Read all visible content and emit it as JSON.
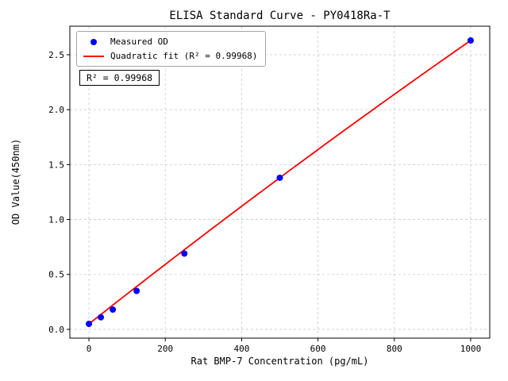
{
  "chart_data": {
    "type": "scatter",
    "title": "ELISA Standard Curve - PY0418Ra-T",
    "xlabel": "Rat BMP-7 Concentration (pg/mL)",
    "ylabel": "OD Value(450nm)",
    "xlim": [
      -50,
      1050
    ],
    "ylim": [
      -0.08,
      2.76
    ],
    "x_ticks": [
      0,
      200,
      400,
      600,
      800,
      1000
    ],
    "x_tick_labels": [
      "0",
      "200",
      "400",
      "600",
      "800",
      "1000"
    ],
    "y_ticks": [
      0.0,
      0.5,
      1.0,
      1.5,
      2.0,
      2.5
    ],
    "y_tick_labels": [
      "0.0",
      "0.5",
      "1.0",
      "1.5",
      "2.0",
      "2.5"
    ],
    "grid": true,
    "background_color": "#ffffff",
    "legend": {
      "position": "upper-left",
      "entries": [
        {
          "label": "Measured OD",
          "marker": "circle",
          "color": "#0000ff"
        },
        {
          "label": "Quadratic fit (R² = 0.99968)",
          "marker": "line",
          "color": "#ff0000"
        }
      ]
    },
    "annotation": "R² = 0.99968",
    "series": [
      {
        "name": "Measured OD",
        "type": "scatter",
        "color": "#0000ff",
        "x": [
          0,
          31.25,
          62.5,
          125,
          250,
          500,
          1000
        ],
        "y": [
          0.05,
          0.11,
          0.18,
          0.35,
          0.69,
          1.38,
          2.63
        ]
      },
      {
        "name": "Quadratic fit",
        "type": "line",
        "color": "#ff0000",
        "r_squared": 0.99968,
        "fit_coefficients": [
          0.05,
          0.00274,
          -1.6e-07
        ],
        "x_range": [
          0,
          1000
        ]
      }
    ]
  }
}
